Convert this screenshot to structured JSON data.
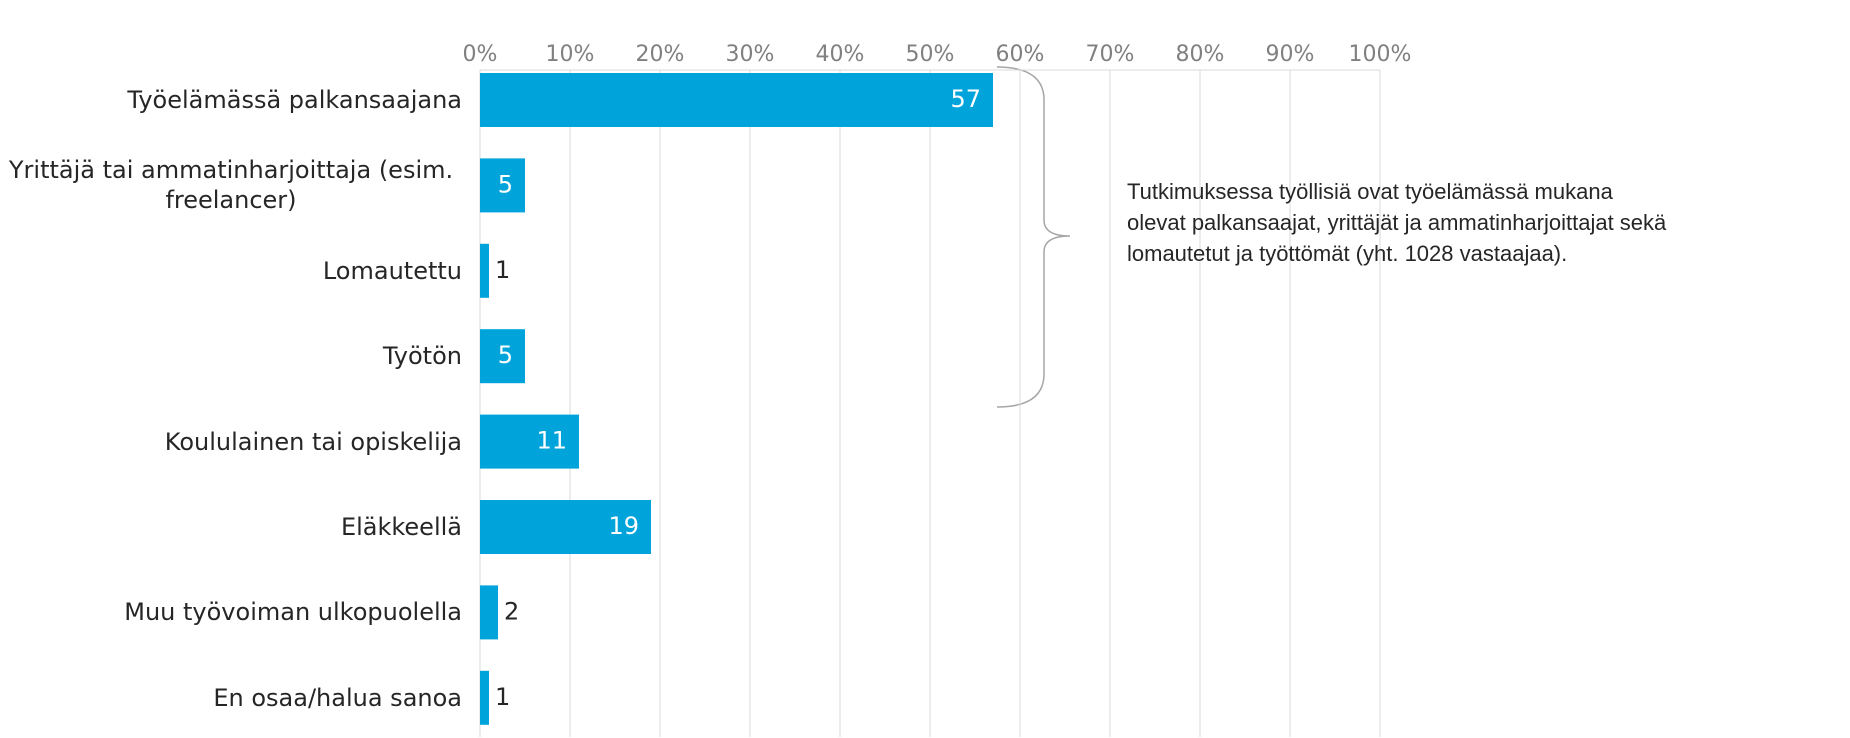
{
  "chart_data": {
    "type": "hbar",
    "categories": [
      "Työelämässä palkansaajana",
      "Yrittäjä tai ammatinharjoittaja (esim. freelancer)",
      "Lomautettu",
      "Työtön",
      "Koululainen tai opiskelija",
      "Eläkkeellä",
      "Muu työvoiman ulkopuolella",
      "En osaa/halua sanoa"
    ],
    "values": [
      57,
      5,
      1,
      5,
      11,
      19,
      2,
      1
    ],
    "color": "#00a3da",
    "xlim": [
      0,
      100
    ],
    "xticks": [
      {
        "value": 0,
        "label": "0%"
      },
      {
        "value": 10,
        "label": "10%"
      },
      {
        "value": 20,
        "label": "20%"
      },
      {
        "value": 30,
        "label": "30%"
      },
      {
        "value": 40,
        "label": "40%"
      },
      {
        "value": 50,
        "label": "50%"
      },
      {
        "value": 60,
        "label": "60%"
      },
      {
        "value": 70,
        "label": "70%"
      },
      {
        "value": 80,
        "label": "80%"
      },
      {
        "value": 90,
        "label": "90%"
      },
      {
        "value": 100,
        "label": "100%"
      }
    ],
    "grid": true,
    "annotation": [
      "Tutkimuksessa työllisiä ovat työelämässä mukana",
      "olevat palkansaajat, yrittäjät ja ammatinharjoittajat sekä",
      "lomautetut ja työttömät (yht. 1028 vastaajaa)."
    ]
  }
}
